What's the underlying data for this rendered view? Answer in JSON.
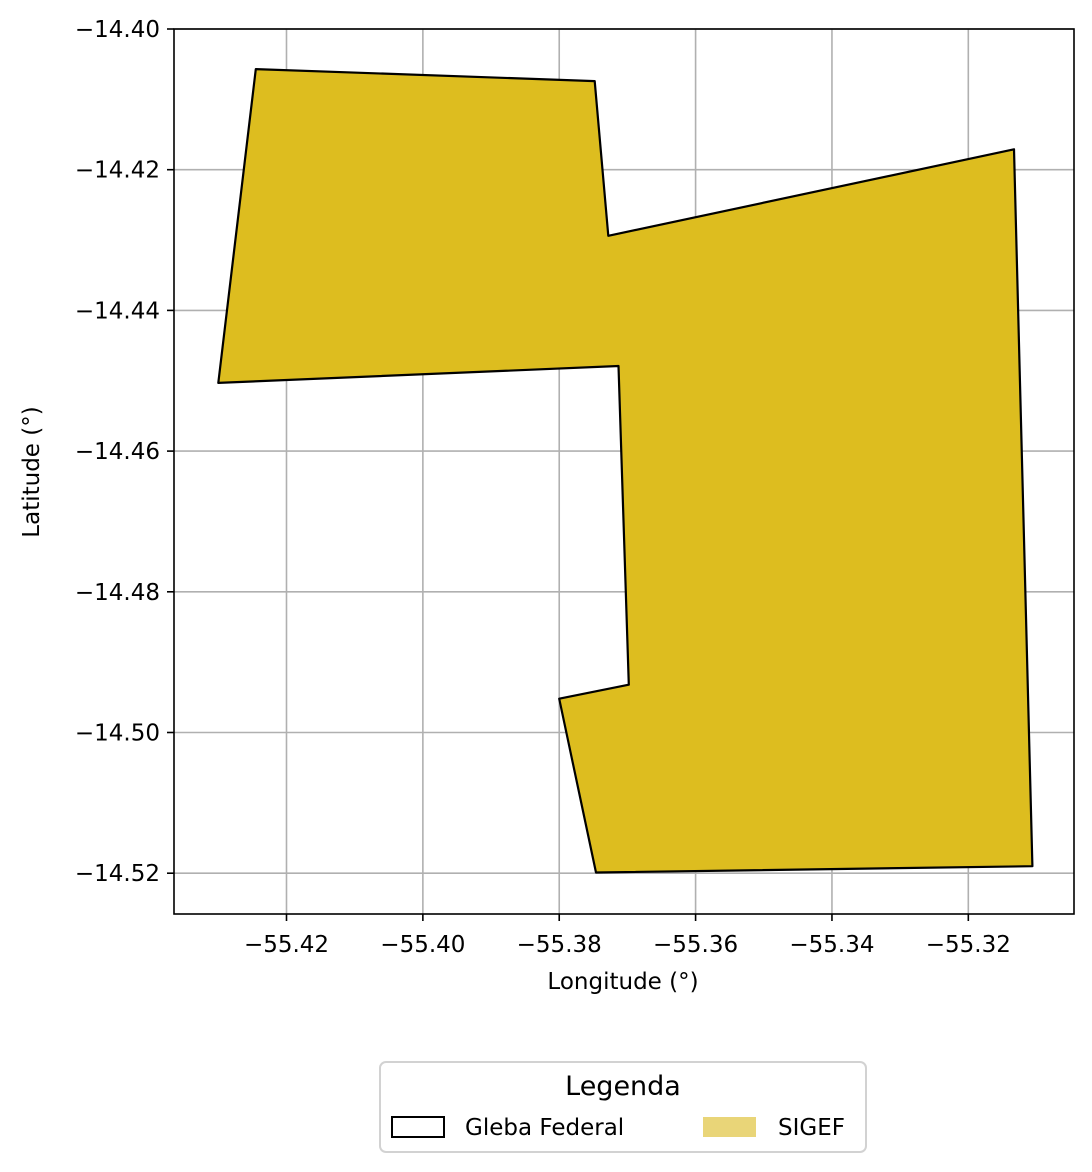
{
  "chart_data": {
    "type": "map",
    "xlabel": "Longitude (°)",
    "ylabel": "Latitude (°)",
    "xlim": [
      -55.4365,
      -55.3045
    ],
    "ylim": [
      -14.5258,
      -14.4
    ],
    "grid": true,
    "x_ticks": [
      {
        "value": -55.42,
        "label": "−55.42"
      },
      {
        "value": -55.4,
        "label": "−55.40"
      },
      {
        "value": -55.38,
        "label": "−55.38"
      },
      {
        "value": -55.36,
        "label": "−55.36"
      },
      {
        "value": -55.34,
        "label": "−55.34"
      },
      {
        "value": -55.32,
        "label": "−55.32"
      }
    ],
    "y_ticks": [
      {
        "value": -14.4,
        "label": "−14.40"
      },
      {
        "value": -14.42,
        "label": "−14.42"
      },
      {
        "value": -14.44,
        "label": "−14.44"
      },
      {
        "value": -14.46,
        "label": "−14.46"
      },
      {
        "value": -14.48,
        "label": "−14.48"
      },
      {
        "value": -14.5,
        "label": "−14.50"
      },
      {
        "value": -14.52,
        "label": "−14.52"
      }
    ],
    "layers": [
      {
        "name": "SIGEF",
        "fill_color": "#ddbd1f",
        "stroke_color": "#000000",
        "polygon": [
          [
            -55.4245,
            -14.4057
          ],
          [
            -55.3748,
            -14.4074
          ],
          [
            -55.3728,
            -14.4294
          ],
          [
            -55.3133,
            -14.4171
          ],
          [
            -55.3106,
            -14.519
          ],
          [
            -55.3746,
            -14.5199
          ],
          [
            -55.38,
            -14.4952
          ],
          [
            -55.3698,
            -14.4932
          ],
          [
            -55.3713,
            -14.4479
          ],
          [
            -55.43,
            -14.4503
          ]
        ]
      }
    ],
    "legend": {
      "title": "Legenda",
      "placement": "bottom-center",
      "entries": [
        {
          "label": "Gleba Federal",
          "swatch": "outline",
          "color": "#000000"
        },
        {
          "label": "SIGEF",
          "swatch": "fill",
          "color": "#e9d578"
        }
      ]
    }
  }
}
